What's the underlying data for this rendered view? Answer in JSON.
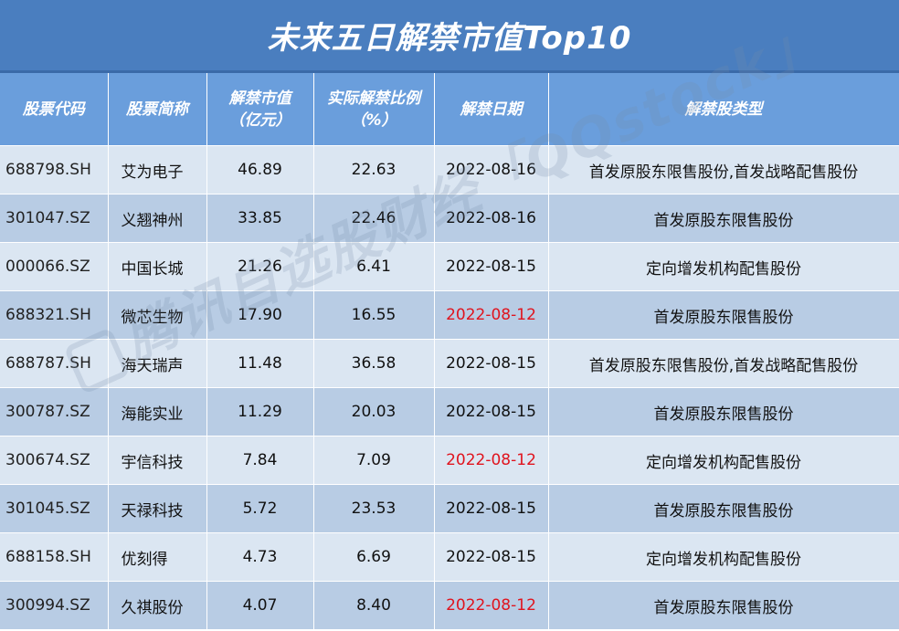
{
  "title": "未来五日解禁市值Top10",
  "headers": {
    "code": "股票代码",
    "name": "股票简称",
    "value_l1": "解禁市值",
    "value_l2": "（亿元）",
    "ratio_l1": "实际解禁比例",
    "ratio_l2": "（%）",
    "date": "解禁日期",
    "type": "解禁股类型"
  },
  "rows": [
    {
      "code": "688798.SH",
      "name": "艾为电子",
      "value": "46.89",
      "ratio": "22.63",
      "date": "2022-08-16",
      "type": "首发原股东限售股份,首发战略配售股份",
      "date_red": false
    },
    {
      "code": "301047.SZ",
      "name": "义翘神州",
      "value": "33.85",
      "ratio": "22.46",
      "date": "2022-08-16",
      "type": "首发原股东限售股份",
      "date_red": false
    },
    {
      "code": "000066.SZ",
      "name": "中国长城",
      "value": "21.26",
      "ratio": "6.41",
      "date": "2022-08-15",
      "type": "定向增发机构配售股份",
      "date_red": false
    },
    {
      "code": "688321.SH",
      "name": "微芯生物",
      "value": "17.90",
      "ratio": "16.55",
      "date": "2022-08-12",
      "type": "首发原股东限售股份",
      "date_red": true
    },
    {
      "code": "688787.SH",
      "name": "海天瑞声",
      "value": "11.48",
      "ratio": "36.58",
      "date": "2022-08-15",
      "type": "首发原股东限售股份,首发战略配售股份",
      "date_red": false
    },
    {
      "code": "300787.SZ",
      "name": "海能实业",
      "value": "11.29",
      "ratio": "20.03",
      "date": "2022-08-15",
      "type": "首发原股东限售股份",
      "date_red": false
    },
    {
      "code": "300674.SZ",
      "name": "宇信科技",
      "value": "7.84",
      "ratio": "7.09",
      "date": "2022-08-12",
      "type": "定向增发机构配售股份",
      "date_red": true
    },
    {
      "code": "301045.SZ",
      "name": "天禄科技",
      "value": "5.72",
      "ratio": "23.53",
      "date": "2022-08-15",
      "type": "首发原股东限售股份",
      "date_red": false
    },
    {
      "code": "688158.SH",
      "name": "优刻得",
      "value": "4.73",
      "ratio": "6.69",
      "date": "2022-08-15",
      "type": "定向增发机构配售股份",
      "date_red": false
    },
    {
      "code": "300994.SZ",
      "name": "久祺股份",
      "value": "4.07",
      "ratio": "8.40",
      "date": "2022-08-12",
      "type": "首发原股东限售股份",
      "date_red": true
    }
  ],
  "watermark": "腾讯自选股财经「QQstock」",
  "colors": {
    "header_bg": "#4a7ebf",
    "red_date": "#e0141e"
  }
}
